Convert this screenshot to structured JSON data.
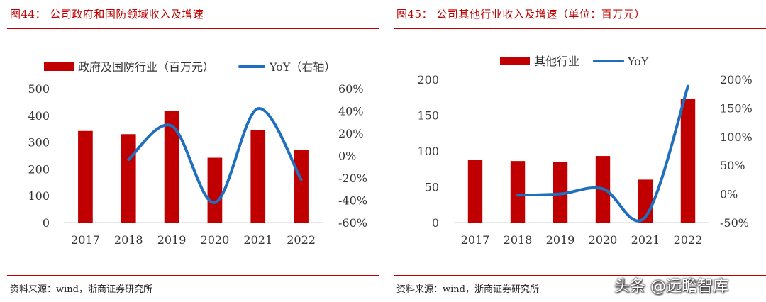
{
  "charts": [
    {
      "fig_title": "图44： 公司政府和国防领域收入及增速",
      "source": "资料来源：wind，浙商证券研究所",
      "chart_data": {
        "type": "bar",
        "categories": [
          "2017",
          "2018",
          "2019",
          "2020",
          "2021",
          "2022"
        ],
        "series": [
          {
            "name": "政府及国防行业（百万元）",
            "type": "bar",
            "axis": "left",
            "color": "#c00000",
            "values": [
              342,
              330,
              418,
              242,
              344,
              270
            ]
          },
          {
            "name": "YoY（右轴）",
            "type": "line",
            "axis": "right",
            "color": "#1f6fbf",
            "values": [
              null,
              -0.035,
              0.266,
              -0.421,
              0.421,
              -0.215
            ]
          }
        ],
        "ylim_left": [
          0,
          500
        ],
        "yticks_left": [
          "0",
          "100",
          "200",
          "300",
          "400",
          "500"
        ],
        "ylim_right": [
          -0.6,
          0.6
        ],
        "yticks_right": [
          "-60%",
          "-40%",
          "-20%",
          "0%",
          "20%",
          "40%",
          "60%"
        ],
        "legend_position": "top",
        "grid": false
      }
    },
    {
      "fig_title": "图45： 公司其他行业收入及增速（单位：百万元）",
      "source": "资料来源：wind，浙商证券研究所",
      "chart_data": {
        "type": "bar",
        "categories": [
          "2017",
          "2018",
          "2019",
          "2020",
          "2021",
          "2022"
        ],
        "series": [
          {
            "name": "其他行业",
            "type": "bar",
            "axis": "left",
            "color": "#c00000",
            "values": [
              88,
              86,
              85,
              93,
              60,
              173
            ]
          },
          {
            "name": "YoY",
            "type": "line",
            "axis": "right",
            "color": "#1f6fbf",
            "values": [
              null,
              -0.02,
              0.0,
              0.09,
              -0.4,
              1.88
            ]
          }
        ],
        "ylim_left": [
          0,
          200
        ],
        "yticks_left": [
          "0",
          "50",
          "100",
          "150",
          "200"
        ],
        "ylim_right": [
          -0.5,
          2.0
        ],
        "yticks_right": [
          "-50%",
          "0%",
          "50%",
          "100%",
          "150%",
          "200%"
        ],
        "legend_position": "top",
        "grid": false
      }
    }
  ],
  "watermark": "头条 @远瞻智库"
}
